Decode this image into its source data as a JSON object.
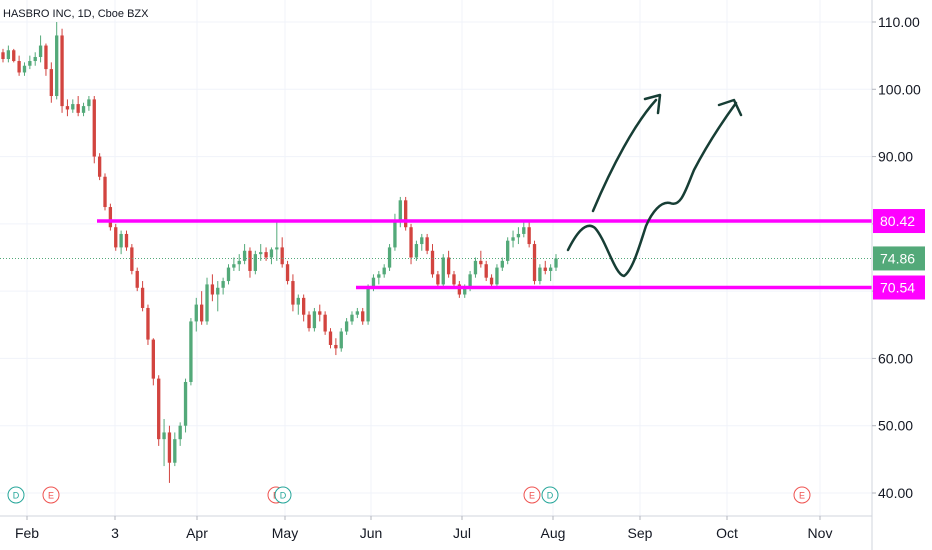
{
  "title": "HASBRO INC, 1D, Cboe BZX",
  "chart_data": {
    "type": "candlestick",
    "ylim": [
      37,
      113
    ],
    "y_ticks": [
      "110.00",
      "100.00",
      "90.00",
      "80.00",
      "70.00",
      "60.00",
      "50.00",
      "40.00"
    ],
    "x_ticks": [
      "Feb",
      "3",
      "Apr",
      "May",
      "Jun",
      "Jul",
      "Aug",
      "Sep",
      "Oct",
      "Nov"
    ],
    "levels": [
      {
        "label": "80.42",
        "value": 80.42,
        "color": "#ff00ff"
      },
      {
        "label": "70.54",
        "value": 70.54,
        "color": "#ff00ff"
      }
    ],
    "last_price": {
      "label": "74.86",
      "value": 74.86,
      "color": "#53a979"
    },
    "events": [
      "D",
      "E",
      "E",
      "D",
      "E",
      "D",
      "E"
    ],
    "colors": {
      "up": "#53a979",
      "down": "#d2443f"
    },
    "candles": [
      [
        105.5,
        106.0,
        104.0,
        104.5
      ],
      [
        104.5,
        106.5,
        104.0,
        105.8
      ],
      [
        105.8,
        106.0,
        104.0,
        104.2
      ],
      [
        104.2,
        105.0,
        102.0,
        102.5
      ],
      [
        102.5,
        104.0,
        102.0,
        103.5
      ],
      [
        103.5,
        105.0,
        103.0,
        104.2
      ],
      [
        104.2,
        105.5,
        103.5,
        104.8
      ],
      [
        104.8,
        108.0,
        104.0,
        106.5
      ],
      [
        106.5,
        106.8,
        102.0,
        103.0
      ],
      [
        103.0,
        104.0,
        98.0,
        99.0
      ],
      [
        99.0,
        110.0,
        98.5,
        108.0
      ],
      [
        108.0,
        109.0,
        96.5,
        97.5
      ],
      [
        97.5,
        98.5,
        96.0,
        97.0
      ],
      [
        97.0,
        98.5,
        96.5,
        97.8
      ],
      [
        97.8,
        99.0,
        96.0,
        96.5
      ],
      [
        96.5,
        98.0,
        96.0,
        97.5
      ],
      [
        97.5,
        99.0,
        96.8,
        98.5
      ],
      [
        98.5,
        99.0,
        89.0,
        90.0
      ],
      [
        90.0,
        90.5,
        86.5,
        87.0
      ],
      [
        87.0,
        87.5,
        82.0,
        82.5
      ],
      [
        82.5,
        83.0,
        79.0,
        79.5
      ],
      [
        79.5,
        80.0,
        76.0,
        76.5
      ],
      [
        76.5,
        79.0,
        75.5,
        78.5
      ],
      [
        78.5,
        79.0,
        76.0,
        76.5
      ],
      [
        76.5,
        77.0,
        72.5,
        73.0
      ],
      [
        73.0,
        73.5,
        70.0,
        70.5
      ],
      [
        70.5,
        71.5,
        67.0,
        67.5
      ],
      [
        67.5,
        68.0,
        62.0,
        62.8
      ],
      [
        62.8,
        63.0,
        56.0,
        57.0
      ],
      [
        57.0,
        57.5,
        47.0,
        48.0
      ],
      [
        48.0,
        51.0,
        44.0,
        49.0
      ],
      [
        49.0,
        50.0,
        41.5,
        44.5
      ],
      [
        44.5,
        49.0,
        44.0,
        48.0
      ],
      [
        48.0,
        50.5,
        47.0,
        50.0
      ],
      [
        50.0,
        57.0,
        49.0,
        56.5
      ],
      [
        56.5,
        66.0,
        56.0,
        65.5
      ],
      [
        65.5,
        69.0,
        64.0,
        68.0
      ],
      [
        68.0,
        70.0,
        65.0,
        65.5
      ],
      [
        65.5,
        72.0,
        65.0,
        71.0
      ],
      [
        71.0,
        72.5,
        68.5,
        69.5
      ],
      [
        69.5,
        71.5,
        67.0,
        70.5
      ],
      [
        70.5,
        72.0,
        69.5,
        71.5
      ],
      [
        71.5,
        74.0,
        71.0,
        73.5
      ],
      [
        73.5,
        75.0,
        73.0,
        74.0
      ],
      [
        74.0,
        75.5,
        73.0,
        74.5
      ],
      [
        74.5,
        77.0,
        74.0,
        76.0
      ],
      [
        76.0,
        76.5,
        72.0,
        73.0
      ],
      [
        73.0,
        76.0,
        72.5,
        75.5
      ],
      [
        75.5,
        77.0,
        74.5,
        75.8
      ],
      [
        75.8,
        76.5,
        74.5,
        75.0
      ],
      [
        75.0,
        76.5,
        74.0,
        76.2
      ],
      [
        76.2,
        80.5,
        74.5,
        76.5
      ],
      [
        76.5,
        78.0,
        73.5,
        74.0
      ],
      [
        74.0,
        74.5,
        71.0,
        71.5
      ],
      [
        71.5,
        72.5,
        67.0,
        68.0
      ],
      [
        68.0,
        69.5,
        66.5,
        69.0
      ],
      [
        69.0,
        69.5,
        65.5,
        66.5
      ],
      [
        66.5,
        67.0,
        64.0,
        64.5
      ],
      [
        64.5,
        67.5,
        64.0,
        67.0
      ],
      [
        67.0,
        68.0,
        65.5,
        66.5
      ],
      [
        66.5,
        67.0,
        63.5,
        64.0
      ],
      [
        64.0,
        64.5,
        61.5,
        62.0
      ],
      [
        62.0,
        63.0,
        60.5,
        61.5
      ],
      [
        61.5,
        64.5,
        61.0,
        64.0
      ],
      [
        64.0,
        66.0,
        63.5,
        65.5
      ],
      [
        65.5,
        67.0,
        65.0,
        66.5
      ],
      [
        66.5,
        67.5,
        66.0,
        67.0
      ],
      [
        67.0,
        67.5,
        65.0,
        65.5
      ],
      [
        65.5,
        71.0,
        65.0,
        70.5
      ],
      [
        70.5,
        72.5,
        70.0,
        72.0
      ],
      [
        72.0,
        73.0,
        71.0,
        72.5
      ],
      [
        72.5,
        74.0,
        72.0,
        73.5
      ],
      [
        73.5,
        77.0,
        73.0,
        76.5
      ],
      [
        76.5,
        81.5,
        76.0,
        80.5
      ],
      [
        80.5,
        84.0,
        79.5,
        83.5
      ],
      [
        83.5,
        84.0,
        79.0,
        79.5
      ],
      [
        79.5,
        80.0,
        74.0,
        75.0
      ],
      [
        75.0,
        77.5,
        74.5,
        77.0
      ],
      [
        77.0,
        78.5,
        76.0,
        78.0
      ],
      [
        78.0,
        78.5,
        75.5,
        76.0
      ],
      [
        76.0,
        77.0,
        72.0,
        72.5
      ],
      [
        72.5,
        73.0,
        70.5,
        71.0
      ],
      [
        71.0,
        75.5,
        70.5,
        75.0
      ],
      [
        75.0,
        76.0,
        72.0,
        72.5
      ],
      [
        72.5,
        73.0,
        70.5,
        71.0
      ],
      [
        71.0,
        71.5,
        69.0,
        69.5
      ],
      [
        69.5,
        71.0,
        69.0,
        70.5
      ],
      [
        70.5,
        73.0,
        70.0,
        72.5
      ],
      [
        72.5,
        75.0,
        72.0,
        74.5
      ],
      [
        74.5,
        76.0,
        73.5,
        74.0
      ],
      [
        74.0,
        74.5,
        71.5,
        72.0
      ],
      [
        72.0,
        72.5,
        70.5,
        71.0
      ],
      [
        71.0,
        74.0,
        70.5,
        73.5
      ],
      [
        73.5,
        75.0,
        73.0,
        74.5
      ],
      [
        74.5,
        78.0,
        74.0,
        77.5
      ],
      [
        77.5,
        79.0,
        76.5,
        78.0
      ],
      [
        78.0,
        79.5,
        77.0,
        78.5
      ],
      [
        78.5,
        80.5,
        78.0,
        79.5
      ],
      [
        79.5,
        80.5,
        76.5,
        77.0
      ],
      [
        77.0,
        77.5,
        71.0,
        71.5
      ],
      [
        71.5,
        74.0,
        71.0,
        73.5
      ],
      [
        73.5,
        74.5,
        72.5,
        73.0
      ],
      [
        73.0,
        74.0,
        71.5,
        73.5
      ],
      [
        73.5,
        75.5,
        73.0,
        74.86
      ]
    ]
  }
}
